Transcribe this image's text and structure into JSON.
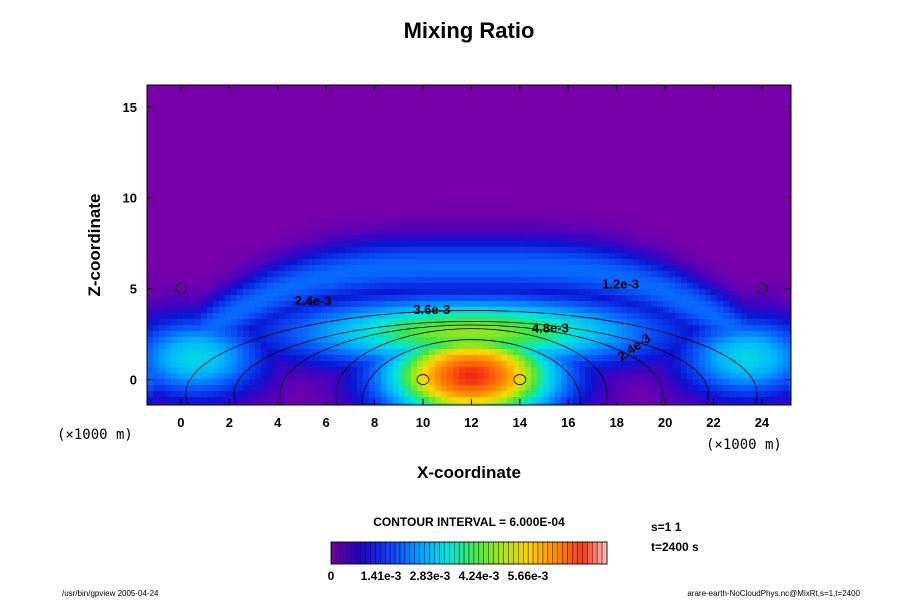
{
  "chart_data": {
    "type": "heatmap",
    "title": "Mixing Ratio",
    "xlabel": "X-coordinate",
    "ylabel": "Z-coordinate",
    "x_unit": "(×1000 m)",
    "y_unit": "(×1000 m)",
    "xlim": [
      -1.4,
      25.2
    ],
    "ylim": [
      -1.4,
      16.2
    ],
    "x_ticks": [
      0,
      2,
      4,
      6,
      8,
      10,
      12,
      14,
      16,
      18,
      20,
      22,
      24
    ],
    "y_ticks": [
      0,
      5,
      10,
      15
    ],
    "contour_interval_text": "CONTOUR INTERVAL = 6.000E-04",
    "contour_labels": [
      {
        "text": "1.2e-3",
        "x": 17.4,
        "z": 5.0
      },
      {
        "text": "2.4e-3",
        "x": 4.7,
        "z": 4.1
      },
      {
        "text": "3.6e-3",
        "x": 9.6,
        "z": 3.6
      },
      {
        "text": "4.8e-3",
        "x": 14.5,
        "z": 2.6
      },
      {
        "text": "2.4e-3",
        "x": 18.2,
        "z": 1.0
      }
    ],
    "colorbar": {
      "min": 0,
      "max": 0.0063,
      "tick_labels": [
        "0",
        "1.41e-3",
        "2.83e-3",
        "4.24e-3",
        "5.66e-3"
      ]
    },
    "annotations": [
      "s=1 1",
      "t=2400 s"
    ]
  },
  "footer": {
    "left": "/usr/bin/gpview 2005-04-24",
    "right": "arare-earth-NoCloudPhys.nc@MixRt,s=1,t=2400"
  }
}
